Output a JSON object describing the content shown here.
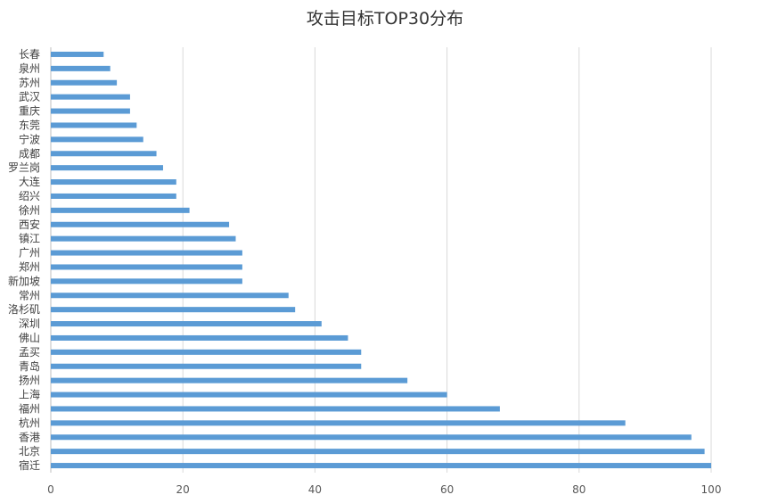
{
  "chart_data": {
    "type": "bar",
    "orientation": "horizontal",
    "title": "攻击目标TOP30分布",
    "xlabel": "",
    "ylabel": "",
    "xlim": [
      0,
      100
    ],
    "x_ticks": [
      0,
      20,
      40,
      60,
      80,
      100
    ],
    "grid": "vertical",
    "legend": "none",
    "bar_color": "#5B9BD5",
    "categories": [
      "宿迁",
      "北京",
      "香港",
      "杭州",
      "福州",
      "上海",
      "扬州",
      "青岛",
      "孟买",
      "佛山",
      "深圳",
      "洛杉矶",
      "常州",
      "新加坡",
      "郑州",
      "广州",
      "镇江",
      "西安",
      "徐州",
      "绍兴",
      "大连",
      "罗兰岗",
      "成都",
      "宁波",
      "东莞",
      "重庆",
      "武汉",
      "苏州",
      "泉州",
      "长春"
    ],
    "values": [
      100,
      99,
      97,
      87,
      68,
      60,
      54,
      47,
      47,
      45,
      41,
      37,
      36,
      29,
      29,
      29,
      28,
      27,
      21,
      19,
      19,
      17,
      16,
      14,
      13,
      12,
      12,
      10,
      9,
      8
    ]
  }
}
